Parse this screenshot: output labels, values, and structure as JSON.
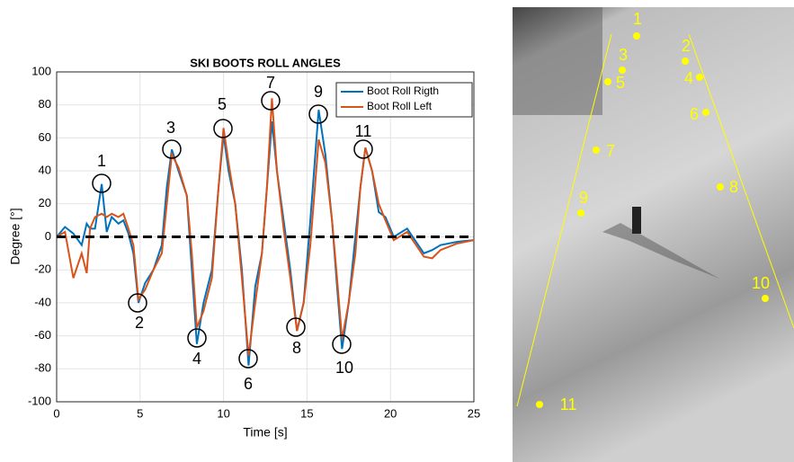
{
  "chart_data": {
    "type": "line",
    "title": "SKI BOOTS ROLL ANGLES",
    "x_label": "Time [s]",
    "y_label": "Degree [°]",
    "x": [
      0,
      0.5,
      1,
      1.5,
      1.8,
      2,
      2.3,
      2.7,
      3,
      3.3,
      3.7,
      4,
      4.3,
      4.6,
      4.9,
      5.3,
      5.8,
      6.3,
      6.6,
      6.9,
      7.3,
      7.8,
      8.1,
      8.4,
      8.8,
      9.3,
      9.7,
      10.0,
      10.3,
      10.7,
      11.1,
      11.5,
      11.9,
      12.3,
      12.6,
      12.9,
      13.2,
      13.6,
      14.0,
      14.4,
      14.8,
      15.2,
      15.7,
      16.1,
      16.5,
      16.8,
      17.1,
      17.5,
      17.9,
      18.2,
      18.5,
      18.9,
      19.3,
      19.7,
      20.2,
      21,
      22,
      22.5,
      23,
      24,
      25
    ],
    "series": [
      {
        "name": "Boot Roll Rigth",
        "color": "#0072bd",
        "values": [
          0,
          6,
          2,
          -5,
          8,
          5,
          5,
          32,
          3,
          12,
          8,
          10,
          2,
          -10,
          -40,
          -28,
          -20,
          -5,
          30,
          53,
          40,
          25,
          -20,
          -65,
          -40,
          -20,
          30,
          62,
          40,
          20,
          -20,
          -78,
          -30,
          -10,
          30,
          70,
          40,
          10,
          -20,
          -57,
          -40,
          10,
          77,
          50,
          10,
          -30,
          -68,
          -40,
          0,
          30,
          54,
          40,
          15,
          12,
          0,
          5,
          -10,
          -8,
          -5,
          -3,
          -2
        ]
      },
      {
        "name": "Boot Roll Left",
        "color": "#d95319",
        "values": [
          0,
          3,
          -25,
          -10,
          -22,
          5,
          12,
          14,
          12,
          14,
          12,
          14,
          5,
          -5,
          -38,
          -32,
          -20,
          -10,
          20,
          50,
          42,
          25,
          -10,
          -55,
          -45,
          -25,
          30,
          66,
          45,
          20,
          -25,
          -72,
          -40,
          -10,
          30,
          84,
          40,
          5,
          -25,
          -57,
          -40,
          -5,
          59,
          45,
          10,
          -25,
          -62,
          -40,
          -10,
          30,
          54,
          40,
          20,
          10,
          -2,
          3,
          -12,
          -13,
          -8,
          -4,
          -2
        ]
      }
    ],
    "xlim": [
      0,
      25
    ],
    "xticks": [
      0,
      5,
      10,
      15,
      20,
      25
    ],
    "ylim": [
      -100,
      100
    ],
    "yticks": [
      -100,
      -80,
      -60,
      -40,
      -20,
      0,
      20,
      40,
      60,
      80,
      100
    ],
    "grid": true,
    "legend": "upper right",
    "reference_line": 0,
    "annotations": [
      "1",
      "2",
      "3",
      "4",
      "5",
      "6",
      "7",
      "8",
      "9",
      "10",
      "11"
    ]
  },
  "photo": {
    "labels": [
      "1",
      "2",
      "3",
      "4",
      "5",
      "6",
      "7",
      "8",
      "9",
      "10",
      "11"
    ]
  }
}
